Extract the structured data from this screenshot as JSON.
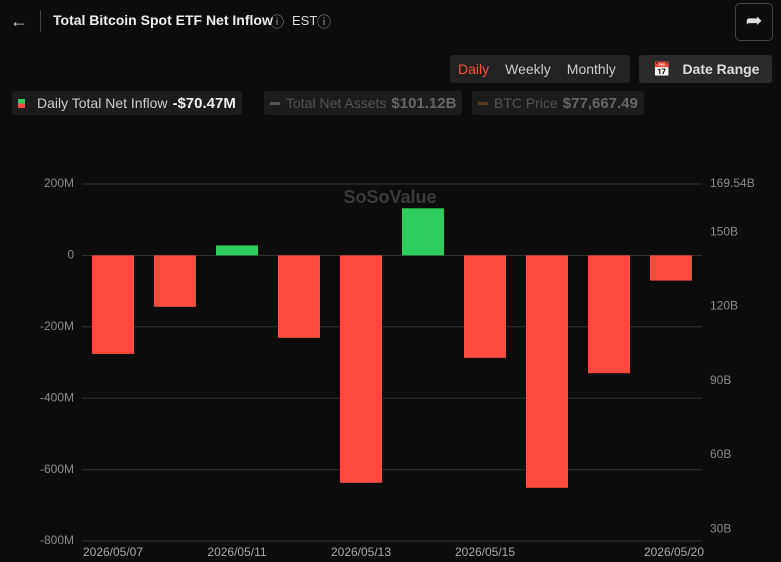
{
  "header": {
    "title": "Total Bitcoin Spot ETF Net Inflow",
    "timezone": "EST"
  },
  "tabs": [
    "Daily",
    "Weekly",
    "Monthly"
  ],
  "date_range": "Date Range",
  "legend": [
    {
      "name": "Daily Total Net Inflow",
      "value": "-$70.47M"
    },
    {
      "name": "Total Net Assets",
      "value": "$101.12B"
    },
    {
      "name": "BTC Price",
      "value": "$77,667.49"
    }
  ],
  "watermark": "SoSoValue",
  "chart_data": {
    "type": "bar",
    "categories": [
      "2026/05/07",
      null,
      "2026/05/11",
      null,
      "2026/05/13",
      null,
      "2026/05/15",
      null,
      null,
      "2026/05/20"
    ],
    "values": [
      -276,
      -144,
      28,
      -231,
      -637,
      132,
      -287,
      -651,
      -330,
      -70.47
    ],
    "positive_color": "#2ecc5b",
    "negative_color": "#fe4a3f",
    "ylim": [
      -800,
      200
    ],
    "yticks": [
      {
        "value": 200,
        "label": "200M"
      },
      0,
      {
        "value": -200,
        "label": "-200M"
      },
      {
        "value": -400,
        "label": "-400M"
      },
      {
        "value": -600,
        "label": "-600M"
      },
      {
        "value": -800,
        "label": "-800M"
      }
    ],
    "y2lim": [
      25.2,
      169.54
    ],
    "y2ticks": [
      {
        "value": 169.54,
        "label": "169.54B"
      },
      {
        "value": 150,
        "label": "150B"
      },
      {
        "value": 120,
        "label": "120B"
      },
      {
        "value": 90,
        "label": "90B"
      },
      {
        "value": 60,
        "label": "60B"
      },
      {
        "value": 30,
        "label": "30B"
      }
    ],
    "grid": true
  }
}
